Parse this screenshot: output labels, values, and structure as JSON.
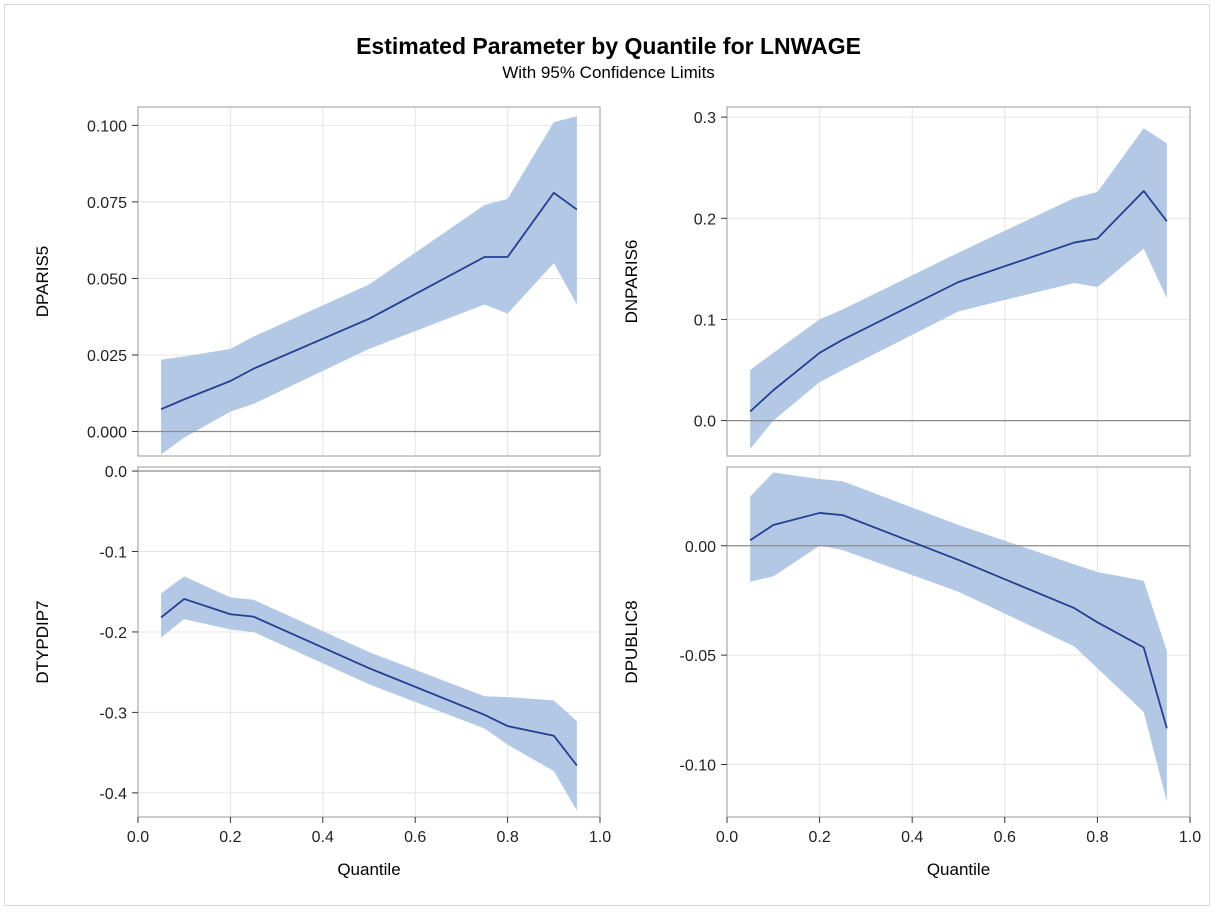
{
  "title": "Estimated Parameter by Quantile for LNWAGE",
  "subtitle": "With 95% Confidence Limits",
  "colors": {
    "band": "#b3c8e5",
    "line": "#243f8f",
    "grid": "#e4e4e4",
    "frame": "#999999",
    "refline": "#8a8a8a"
  },
  "chart_data": [
    {
      "type": "line",
      "ylabel": "DPARIS5",
      "xlabel": "",
      "xlim": [
        0.0,
        1.0
      ],
      "ylim": [
        -0.008,
        0.106
      ],
      "xticks": [
        "0.0",
        "0.2",
        "0.4",
        "0.6",
        "0.8",
        "1.0"
      ],
      "yticks": [
        "0.000",
        "0.025",
        "0.050",
        "0.075",
        "0.100"
      ],
      "ytick_values": [
        0.0,
        0.025,
        0.05,
        0.075,
        0.1
      ],
      "x": [
        0.05,
        0.1,
        0.2,
        0.25,
        0.5,
        0.75,
        0.8,
        0.9,
        0.95
      ],
      "estimate": [
        0.0073,
        0.0105,
        0.0165,
        0.0205,
        0.0368,
        0.057,
        0.057,
        0.078,
        0.0725
      ],
      "lower": [
        -0.0075,
        -0.002,
        0.0065,
        0.009,
        0.027,
        0.0415,
        0.0385,
        0.055,
        0.0415
      ],
      "upper": [
        0.0235,
        0.0245,
        0.027,
        0.031,
        0.048,
        0.074,
        0.076,
        0.101,
        0.103
      ]
    },
    {
      "type": "line",
      "ylabel": "DNPARIS6",
      "xlabel": "",
      "xlim": [
        0.0,
        1.0
      ],
      "ylim": [
        -0.035,
        0.31
      ],
      "xticks": [
        "0.0",
        "0.2",
        "0.4",
        "0.6",
        "0.8",
        "1.0"
      ],
      "yticks": [
        "0.0",
        "0.1",
        "0.2",
        "0.3"
      ],
      "ytick_values": [
        0.0,
        0.1,
        0.2,
        0.3
      ],
      "x": [
        0.05,
        0.1,
        0.2,
        0.25,
        0.5,
        0.75,
        0.8,
        0.9,
        0.95
      ],
      "estimate": [
        0.009,
        0.03,
        0.067,
        0.08,
        0.137,
        0.176,
        0.18,
        0.227,
        0.197
      ],
      "lower": [
        -0.028,
        0.0,
        0.038,
        0.05,
        0.108,
        0.136,
        0.132,
        0.17,
        0.121
      ],
      "upper": [
        0.05,
        0.067,
        0.1,
        0.11,
        0.166,
        0.22,
        0.226,
        0.289,
        0.274
      ]
    },
    {
      "type": "line",
      "ylabel": "DTYPDIP7",
      "xlabel": "Quantile",
      "xlim": [
        0.0,
        1.0
      ],
      "ylim": [
        -0.43,
        0.005
      ],
      "xticks": [
        "0.0",
        "0.2",
        "0.4",
        "0.6",
        "0.8",
        "1.0"
      ],
      "yticks": [
        "0.0",
        "-0.1",
        "-0.2",
        "-0.3",
        "-0.4"
      ],
      "ytick_values": [
        0.0,
        -0.1,
        -0.2,
        -0.3,
        -0.4
      ],
      "x": [
        0.05,
        0.1,
        0.2,
        0.25,
        0.5,
        0.75,
        0.8,
        0.9,
        0.95
      ],
      "estimate": [
        -0.182,
        -0.159,
        -0.178,
        -0.181,
        -0.245,
        -0.303,
        -0.317,
        -0.329,
        -0.366
      ],
      "lower": [
        -0.207,
        -0.184,
        -0.197,
        -0.2,
        -0.265,
        -0.32,
        -0.34,
        -0.373,
        -0.422
      ],
      "upper": [
        -0.152,
        -0.131,
        -0.157,
        -0.16,
        -0.225,
        -0.28,
        -0.281,
        -0.285,
        -0.311
      ]
    },
    {
      "type": "line",
      "ylabel": "DPUBLIC8",
      "xlabel": "Quantile",
      "xlim": [
        0.0,
        1.0
      ],
      "ylim": [
        -0.124,
        0.036
      ],
      "xticks": [
        "0.0",
        "0.2",
        "0.4",
        "0.6",
        "0.8",
        "1.0"
      ],
      "yticks": [
        "0.00",
        "-0.05",
        "-0.10"
      ],
      "ytick_values": [
        0.0,
        -0.05,
        -0.1
      ],
      "x": [
        0.05,
        0.1,
        0.2,
        0.25,
        0.5,
        0.75,
        0.8,
        0.9,
        0.95
      ],
      "estimate": [
        0.0025,
        0.0095,
        0.015,
        0.014,
        -0.0065,
        -0.0285,
        -0.035,
        -0.0465,
        -0.0835
      ],
      "lower": [
        -0.0165,
        -0.014,
        0.0,
        -0.002,
        -0.021,
        -0.046,
        -0.056,
        -0.076,
        -0.117
      ],
      "upper": [
        0.0225,
        0.0335,
        0.0305,
        0.0295,
        0.0095,
        -0.0085,
        -0.012,
        -0.016,
        -0.048
      ]
    }
  ]
}
